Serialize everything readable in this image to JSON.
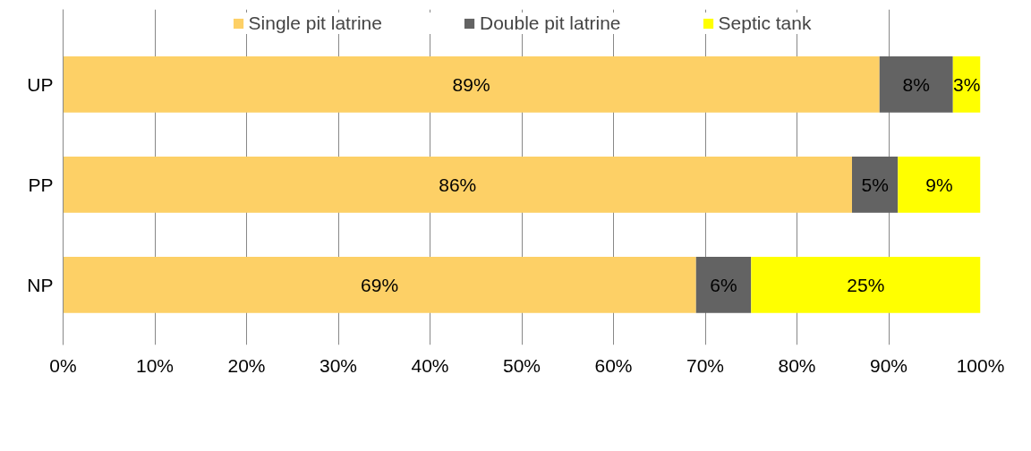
{
  "chart_data": {
    "type": "bar",
    "orientation": "horizontal",
    "stacked": true,
    "categories": [
      "UP",
      "PP",
      "NP"
    ],
    "series": [
      {
        "name": "Single pit latrine",
        "color": "#fdd066",
        "values": [
          89,
          86,
          69
        ],
        "value_labels": [
          "89%",
          "86%",
          "69%"
        ]
      },
      {
        "name": "Double pit latrine",
        "color": "#636363",
        "values": [
          8,
          5,
          6
        ],
        "value_labels": [
          "8%",
          "5%",
          "6%"
        ]
      },
      {
        "name": "Septic tank",
        "color": "#ffff00",
        "values": [
          3,
          9,
          25
        ],
        "value_labels": [
          "3%",
          "9%",
          "25%"
        ]
      }
    ],
    "xlim": [
      0,
      100
    ],
    "xticks": [
      {
        "value": 0,
        "label": "0%"
      },
      {
        "value": 10,
        "label": "10%"
      },
      {
        "value": 20,
        "label": "20%"
      },
      {
        "value": 30,
        "label": "30%"
      },
      {
        "value": 40,
        "label": "40%"
      },
      {
        "value": 50,
        "label": "50%"
      },
      {
        "value": 60,
        "label": "60%"
      },
      {
        "value": 70,
        "label": "70%"
      },
      {
        "value": 80,
        "label": "80%"
      },
      {
        "value": 90,
        "label": "90%"
      },
      {
        "value": 100,
        "label": "100%"
      }
    ],
    "grid": "x",
    "legend": "top"
  }
}
